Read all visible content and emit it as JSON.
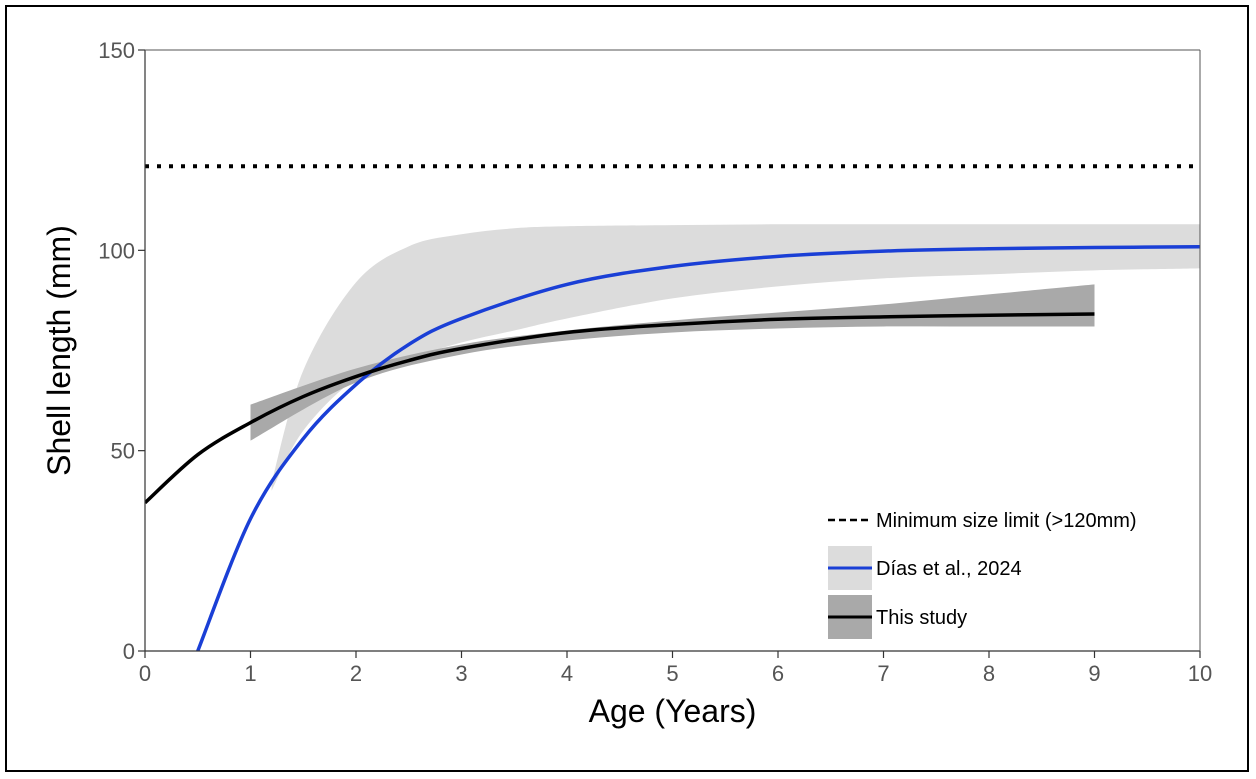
{
  "chart_data": {
    "type": "line",
    "xlabel": "Age (Years)",
    "ylabel": "Shell length (mm)",
    "xlim": [
      0,
      10
    ],
    "ylim": [
      0,
      150
    ],
    "x_ticks": [
      0,
      1,
      2,
      3,
      4,
      5,
      6,
      7,
      8,
      9,
      10
    ],
    "y_ticks": [
      0,
      50,
      100,
      150
    ],
    "grid": false,
    "legend_position": "bottom-right",
    "reference_line": {
      "name": "Minimum size limit (>120mm)",
      "y": 121,
      "style": "dotted",
      "color": "#000000"
    },
    "series": [
      {
        "name": "Días et al., 2024",
        "color": "#1a3fd6",
        "band_color": "#dcdcdc",
        "x": [
          0.5,
          1.0,
          1.5,
          2.0,
          2.5,
          3.0,
          4.0,
          5.0,
          6.0,
          7.0,
          8.0,
          9.0,
          10.0
        ],
        "y": [
          0.0,
          33.0,
          53.0,
          66.5,
          76.5,
          83.0,
          91.5,
          96.0,
          98.5,
          99.8,
          100.4,
          100.7,
          100.9
        ],
        "band_x": [
          1.2,
          1.5,
          2.0,
          2.5,
          3.0,
          3.5,
          4.0,
          5.0,
          6.0,
          7.0,
          8.0,
          9.0,
          10.0
        ],
        "band_lower": [
          40.0,
          55.0,
          68.0,
          73.0,
          77.0,
          80.0,
          83.0,
          88.0,
          91.0,
          93.0,
          94.0,
          95.0,
          95.5
        ],
        "band_upper": [
          42.0,
          70.0,
          92.0,
          101.0,
          104.0,
          105.5,
          106.0,
          106.3,
          106.5,
          106.5,
          106.5,
          106.5,
          106.5
        ]
      },
      {
        "name": "This study",
        "color": "#000000",
        "band_color": "#a9a9a9",
        "x": [
          0.0,
          0.5,
          1.0,
          1.5,
          2.0,
          2.5,
          3.0,
          4.0,
          5.0,
          6.0,
          7.0,
          8.0,
          9.0
        ],
        "y": [
          37.0,
          49.0,
          57.0,
          63.5,
          68.5,
          72.5,
          75.5,
          79.5,
          81.5,
          82.8,
          83.4,
          83.8,
          84.1
        ],
        "band_x": [
          1.0,
          2.0,
          3.0,
          4.0,
          5.0,
          6.0,
          7.0,
          8.0,
          9.0
        ],
        "band_lower": [
          52.5,
          67.0,
          74.0,
          77.5,
          79.5,
          80.5,
          81.0,
          81.0,
          81.0
        ],
        "band_upper": [
          61.5,
          70.5,
          76.5,
          80.0,
          82.5,
          84.5,
          86.5,
          89.0,
          91.5
        ]
      }
    ]
  }
}
